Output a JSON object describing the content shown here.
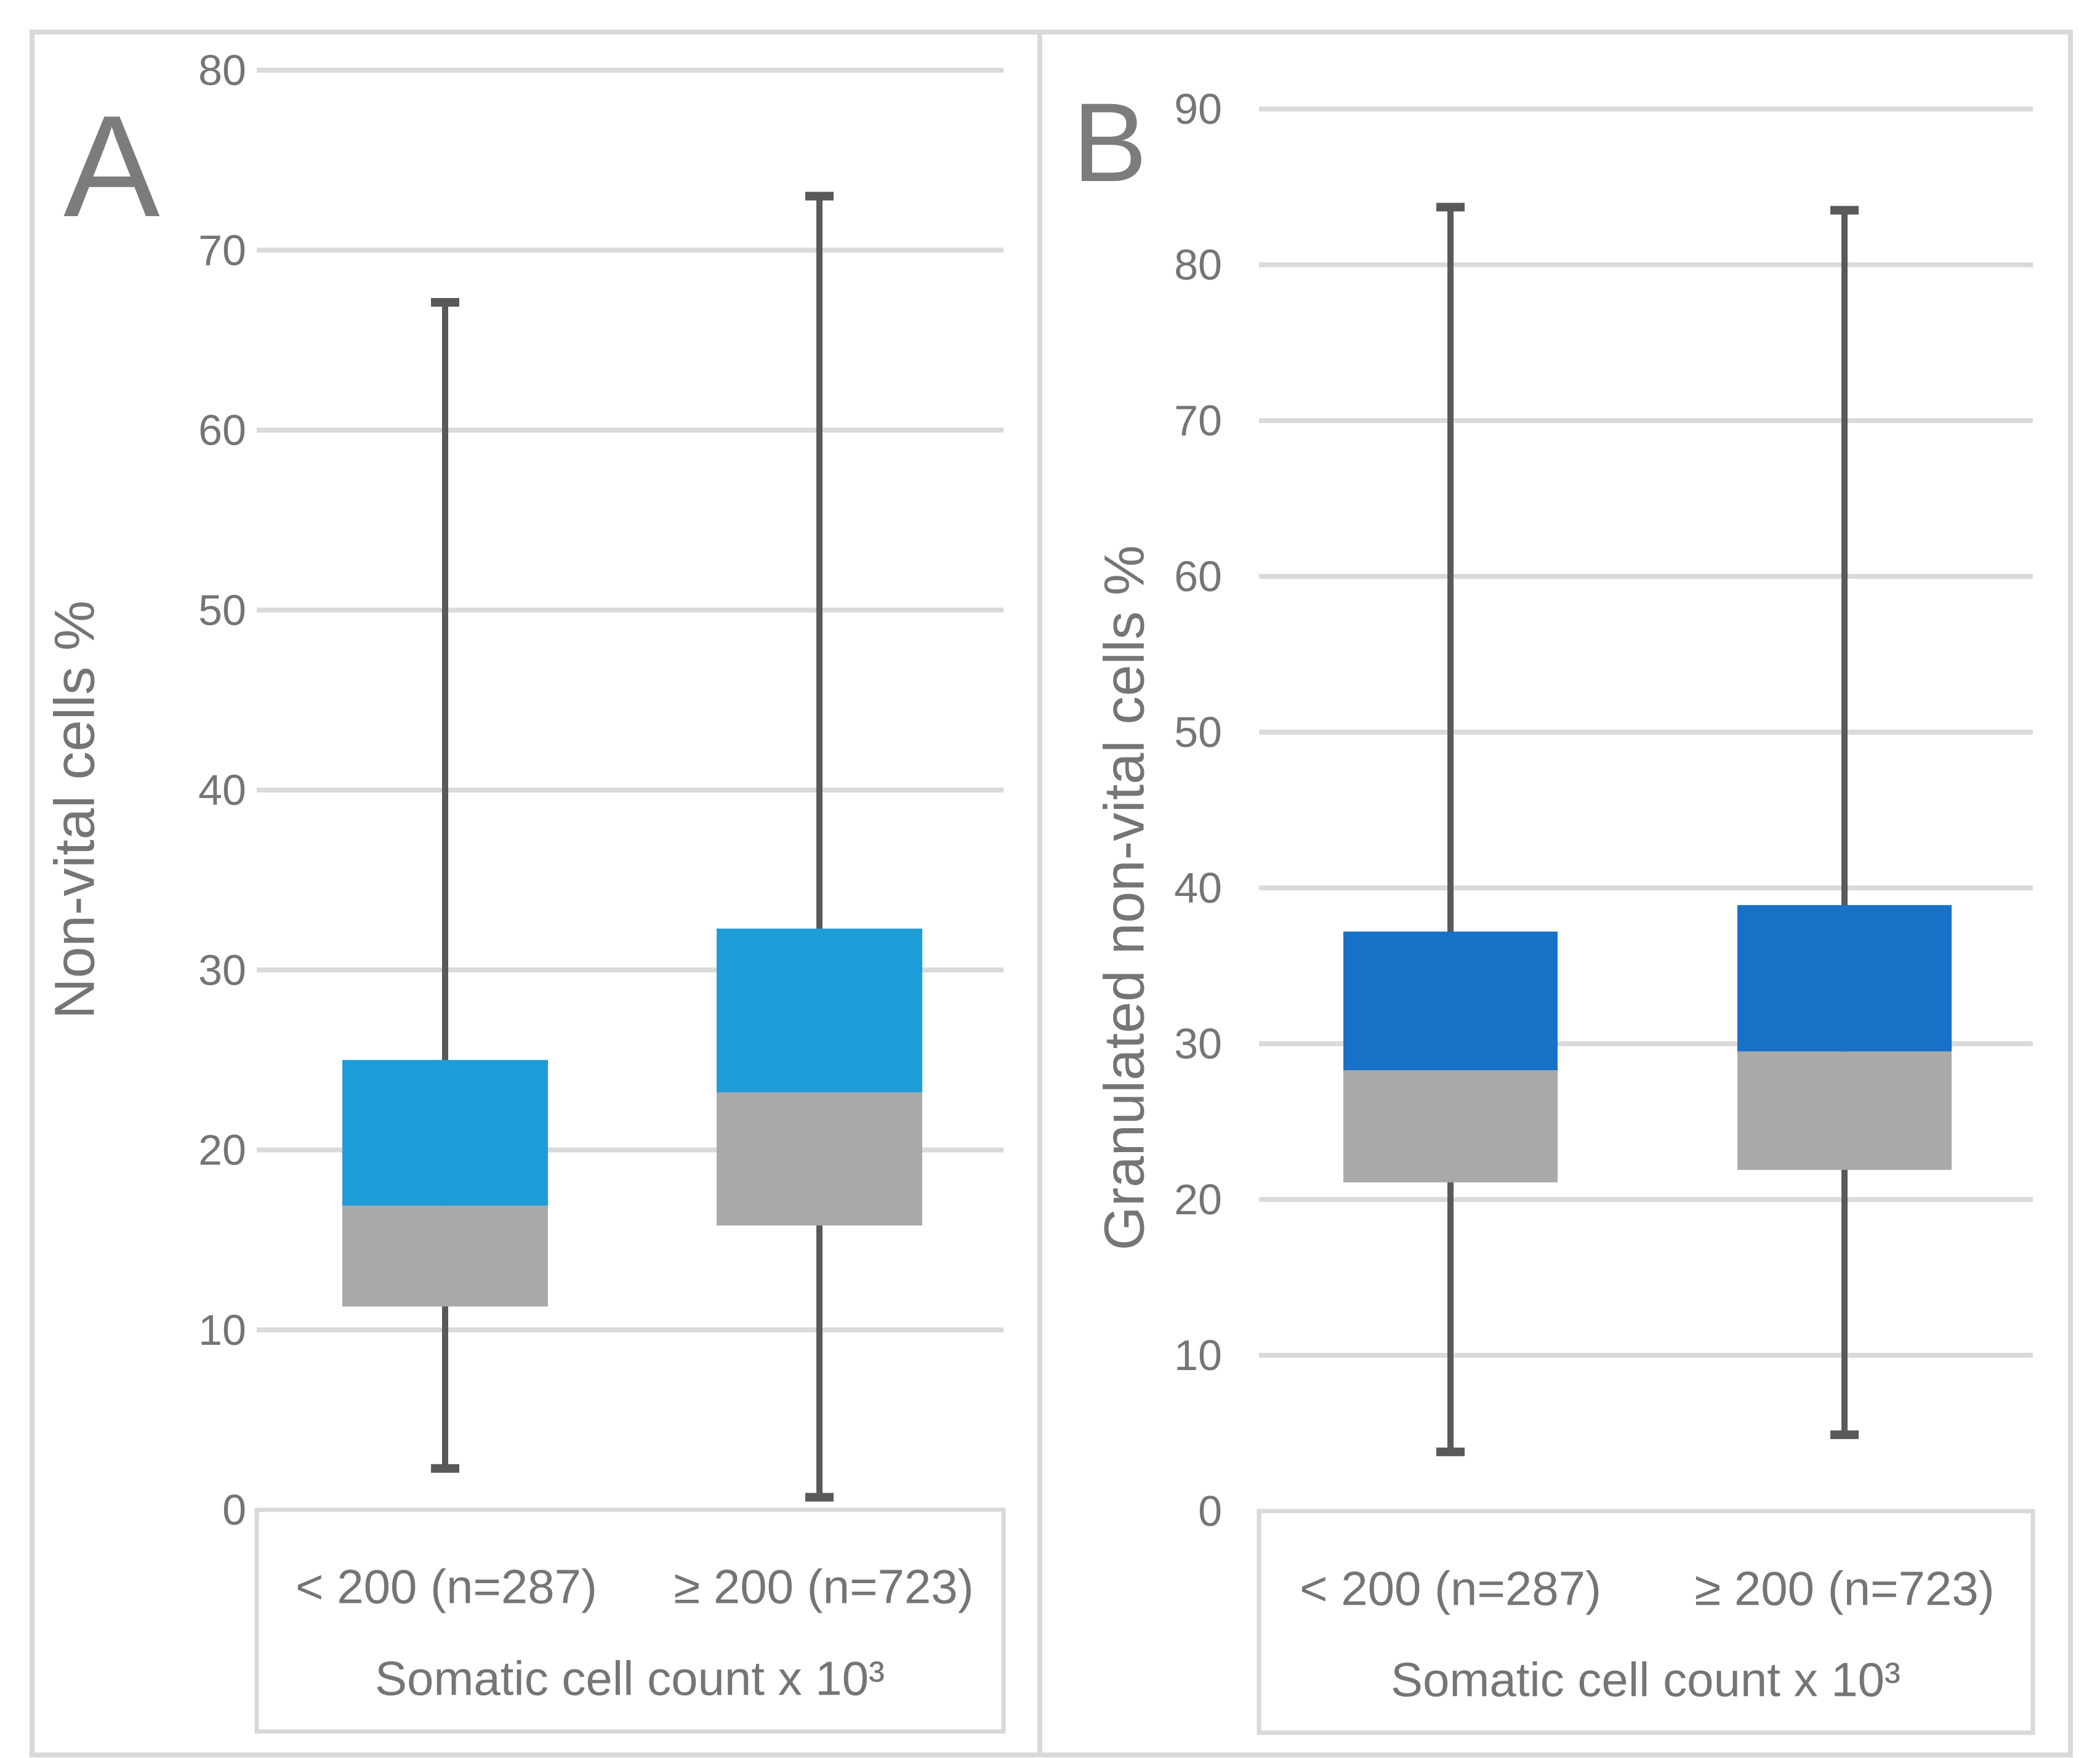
{
  "figure": {
    "background": "#FFFFFF",
    "border_color": "#D9D9D9",
    "gridline_color": "#DADADA",
    "text_color": "#757575"
  },
  "chart_data": [
    {
      "type": "boxplot",
      "panel_letter": "A",
      "ylabel": "Non-vital cells %",
      "xlabel": "Somatic cell count x 10³",
      "ylim": [
        0,
        80
      ],
      "yticks": [
        0,
        10,
        20,
        30,
        40,
        50,
        60,
        70,
        80
      ],
      "grid": true,
      "legend": "none",
      "categories": [
        "< 200 (n=287)",
        "≥ 200 (n=723)"
      ],
      "series": [
        {
          "category": "< 200 (n=287)",
          "whisker_low": 2.3,
          "q1": 11.3,
          "median": 16.9,
          "q3": 25.0,
          "whisker_high": 67.1
        },
        {
          "category": "≥ 200 (n=723)",
          "whisker_low": 0.7,
          "q1": 15.8,
          "median": 23.2,
          "q3": 32.3,
          "whisker_high": 73.0
        }
      ],
      "colors": {
        "upper_box": "#1E9CD8",
        "lower_box": "#A9A9A9",
        "whisker": "#595959"
      }
    },
    {
      "type": "boxplot",
      "panel_letter": "B",
      "ylabel": "Granulated non-vital cells %",
      "xlabel": "Somatic cell count x 10³",
      "ylim": [
        0,
        90
      ],
      "yticks": [
        0,
        10,
        20,
        30,
        40,
        50,
        60,
        70,
        80,
        90
      ],
      "grid": true,
      "legend": "none",
      "categories": [
        "< 200 (n=287)",
        "≥ 200 (n=723)"
      ],
      "series": [
        {
          "category": "< 200 (n=287)",
          "whisker_low": 3.8,
          "q1": 21.1,
          "median": 28.3,
          "q3": 37.2,
          "whisker_high": 83.7
        },
        {
          "category": "≥ 200 (n=723)",
          "whisker_low": 4.9,
          "q1": 21.9,
          "median": 29.5,
          "q3": 38.9,
          "whisker_high": 83.5
        }
      ],
      "colors": {
        "upper_box": "#1871C7",
        "lower_box": "#A9A9A9",
        "whisker": "#595959"
      }
    }
  ]
}
